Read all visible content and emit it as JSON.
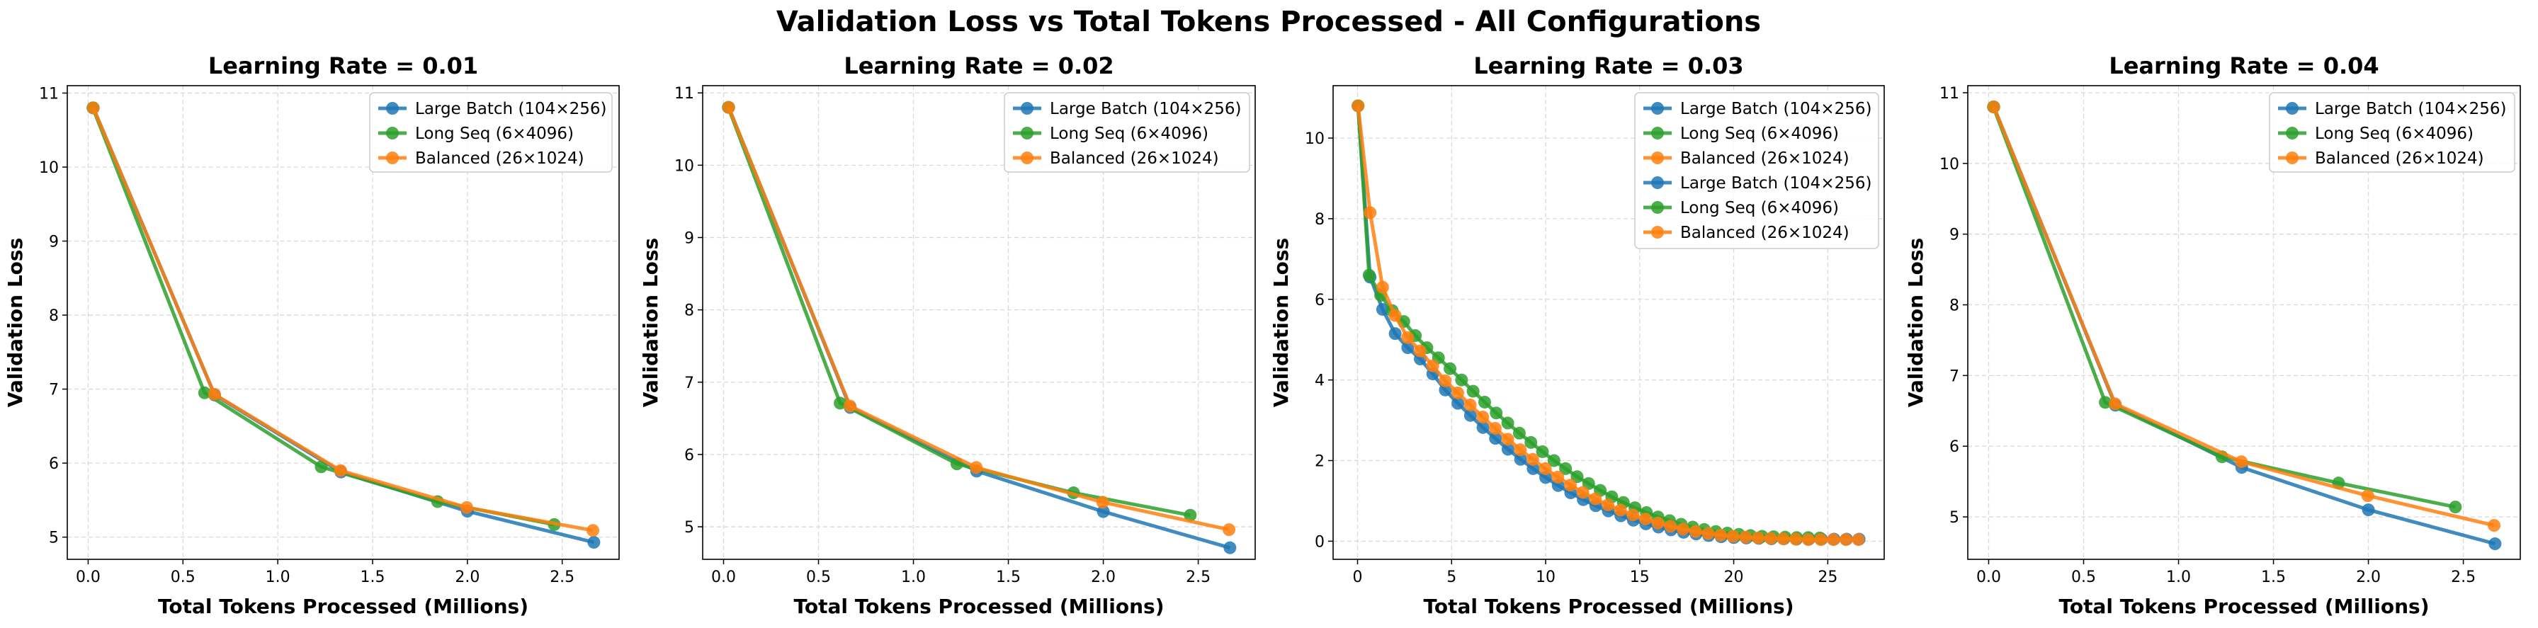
{
  "figure_title": "Validation Loss vs Total Tokens Processed - All Configurations",
  "colors": {
    "Large Batch (104×256)": "#1f77b4",
    "Long Seq (6×4096)": "#2ca02c",
    "Balanced (26×1024)": "#ff7f0e"
  },
  "chart_data": [
    {
      "type": "line",
      "title": "Learning Rate = 0.01",
      "xlabel": "Total Tokens Processed (Millions)",
      "ylabel": "Validation Loss",
      "xlim": [
        -0.11,
        2.8
      ],
      "ylim": [
        4.7,
        11.1
      ],
      "xticks": [
        0.0,
        0.5,
        1.0,
        1.5,
        2.0,
        2.5
      ],
      "xtick_labels": [
        "0.0",
        "0.5",
        "1.0",
        "1.5",
        "2.0",
        "2.5"
      ],
      "yticks": [
        5,
        6,
        7,
        8,
        9,
        10,
        11
      ],
      "ytick_labels": [
        "5",
        "6",
        "7",
        "8",
        "9",
        "10",
        "11"
      ],
      "grid": true,
      "legend": "top-right",
      "series": [
        {
          "name": "Large Batch (104×256)",
          "x": [
            0.027,
            0.667,
            1.333,
            2.0,
            2.667
          ],
          "y": [
            10.8,
            6.92,
            5.88,
            5.35,
            4.93
          ]
        },
        {
          "name": "Long Seq (6×4096)",
          "x": [
            0.025,
            0.614,
            1.229,
            1.843,
            2.458
          ],
          "y": [
            10.8,
            6.95,
            5.95,
            5.48,
            5.17
          ]
        },
        {
          "name": "Balanced (26×1024)",
          "x": [
            0.027,
            0.666,
            1.331,
            1.997,
            2.662
          ],
          "y": [
            10.8,
            6.93,
            5.9,
            5.4,
            5.09
          ]
        }
      ]
    },
    {
      "type": "line",
      "title": "Learning Rate = 0.02",
      "xlabel": "Total Tokens Processed (Millions)",
      "ylabel": "Validation Loss",
      "xlim": [
        -0.11,
        2.8
      ],
      "ylim": [
        4.55,
        11.1
      ],
      "xticks": [
        0.0,
        0.5,
        1.0,
        1.5,
        2.0,
        2.5
      ],
      "xtick_labels": [
        "0.0",
        "0.5",
        "1.0",
        "1.5",
        "2.0",
        "2.5"
      ],
      "yticks": [
        5,
        6,
        7,
        8,
        9,
        10,
        11
      ],
      "ytick_labels": [
        "5",
        "6",
        "7",
        "8",
        "9",
        "10",
        "11"
      ],
      "grid": true,
      "legend": "top-right",
      "series": [
        {
          "name": "Large Batch (104×256)",
          "x": [
            0.027,
            0.667,
            1.333,
            2.0,
            2.667
          ],
          "y": [
            10.8,
            6.65,
            5.77,
            5.21,
            4.71
          ]
        },
        {
          "name": "Long Seq (6×4096)",
          "x": [
            0.025,
            0.614,
            1.229,
            1.843,
            2.458
          ],
          "y": [
            10.8,
            6.71,
            5.87,
            5.47,
            5.16
          ]
        },
        {
          "name": "Balanced (26×1024)",
          "x": [
            0.027,
            0.666,
            1.331,
            1.997,
            2.662
          ],
          "y": [
            10.8,
            6.67,
            5.82,
            5.34,
            4.96
          ]
        }
      ]
    },
    {
      "type": "line",
      "title": "Learning Rate = 0.03",
      "xlabel": "Total Tokens Processed (Millions)",
      "ylabel": "Validation Loss",
      "xlim": [
        -1.3,
        28.0
      ],
      "ylim": [
        -0.45,
        11.3
      ],
      "xticks": [
        0,
        5,
        10,
        15,
        20,
        25
      ],
      "xtick_labels": [
        "0",
        "5",
        "10",
        "15",
        "20",
        "25"
      ],
      "yticks": [
        0,
        2,
        4,
        6,
        8,
        10
      ],
      "ytick_labels": [
        "0",
        "2",
        "4",
        "6",
        "8",
        "10"
      ],
      "grid": true,
      "legend": "top-right",
      "series": [
        {
          "name": "Large Batch (104×256)",
          "x": [
            0.027,
            0.667,
            1.333,
            2.0,
            2.667,
            3.333,
            4.0,
            4.667,
            5.333,
            6.0,
            6.667,
            7.333,
            8.0,
            8.667,
            9.333,
            10.0,
            10.667,
            11.333,
            12.0,
            12.667,
            13.333,
            14.0,
            14.667,
            15.333,
            16.0,
            16.667,
            17.333,
            18.0,
            18.667,
            19.333,
            20.0,
            20.667,
            21.333,
            22.0,
            22.667,
            23.333,
            24.0,
            24.667,
            25.333,
            26.0,
            26.667
          ],
          "y": [
            10.8,
            6.55,
            5.75,
            5.15,
            4.8,
            4.52,
            4.15,
            3.75,
            3.42,
            3.12,
            2.82,
            2.55,
            2.28,
            2.03,
            1.8,
            1.58,
            1.38,
            1.2,
            1.03,
            0.88,
            0.75,
            0.63,
            0.52,
            0.43,
            0.35,
            0.28,
            0.22,
            0.18,
            0.14,
            0.11,
            0.09,
            0.08,
            0.07,
            0.06,
            0.06,
            0.05,
            0.05,
            0.05,
            0.05,
            0.05,
            0.05
          ]
        },
        {
          "name": "Long Seq (6×4096)",
          "x": [
            0.025,
            0.614,
            1.229,
            1.843,
            2.458,
            3.072,
            3.686,
            4.301,
            4.915,
            5.53,
            6.144,
            6.758,
            7.373,
            7.987,
            8.602,
            9.216,
            9.83,
            10.445,
            11.059,
            11.674,
            12.288,
            12.902,
            13.517,
            14.131,
            14.746,
            15.36,
            15.974,
            16.589,
            17.203,
            17.818,
            18.432,
            19.046,
            19.661,
            20.275,
            20.89,
            21.504,
            22.118,
            22.733,
            23.347,
            23.962,
            24.576
          ],
          "y": [
            10.8,
            6.6,
            6.1,
            5.72,
            5.45,
            5.1,
            4.8,
            4.55,
            4.28,
            4.0,
            3.72,
            3.45,
            3.18,
            2.93,
            2.68,
            2.45,
            2.22,
            2.0,
            1.8,
            1.6,
            1.43,
            1.26,
            1.1,
            0.96,
            0.83,
            0.71,
            0.6,
            0.51,
            0.42,
            0.35,
            0.29,
            0.24,
            0.2,
            0.17,
            0.14,
            0.12,
            0.11,
            0.1,
            0.09,
            0.09,
            0.08
          ]
        },
        {
          "name": "Balanced (26×1024)",
          "x": [
            0.027,
            0.666,
            1.331,
            1.997,
            2.662,
            3.328,
            3.994,
            4.659,
            5.325,
            5.99,
            6.656,
            7.322,
            7.987,
            8.653,
            9.318,
            9.984,
            10.65,
            11.315,
            11.981,
            12.646,
            13.312,
            13.978,
            14.643,
            15.309,
            15.974,
            16.64,
            17.306,
            17.971,
            18.637,
            19.302,
            19.968,
            20.634,
            21.299,
            21.965,
            22.63,
            23.296,
            23.962,
            24.627,
            25.293,
            25.958,
            26.624
          ],
          "y": [
            10.8,
            8.15,
            6.3,
            5.6,
            5.05,
            4.72,
            4.35,
            3.98,
            3.68,
            3.38,
            3.08,
            2.8,
            2.53,
            2.27,
            2.03,
            1.8,
            1.59,
            1.39,
            1.21,
            1.05,
            0.9,
            0.77,
            0.65,
            0.55,
            0.45,
            0.37,
            0.3,
            0.24,
            0.19,
            0.15,
            0.12,
            0.1,
            0.08,
            0.07,
            0.06,
            0.05,
            0.04,
            0.04,
            0.04,
            0.04,
            0.04
          ]
        }
      ]
    },
    {
      "type": "line",
      "title": "Learning Rate = 0.04",
      "xlabel": "Total Tokens Processed (Millions)",
      "ylabel": "Validation Loss",
      "xlim": [
        -0.11,
        2.8
      ],
      "ylim": [
        4.4,
        11.1
      ],
      "xticks": [
        0.0,
        0.5,
        1.0,
        1.5,
        2.0,
        2.5
      ],
      "xtick_labels": [
        "0.0",
        "0.5",
        "1.0",
        "1.5",
        "2.0",
        "2.5"
      ],
      "yticks": [
        5,
        6,
        7,
        8,
        9,
        10,
        11
      ],
      "ytick_labels": [
        "5",
        "6",
        "7",
        "8",
        "9",
        "10",
        "11"
      ],
      "grid": true,
      "legend": "top-right",
      "series": [
        {
          "name": "Large Batch (104×256)",
          "x": [
            0.027,
            0.667,
            1.333,
            2.0,
            2.667
          ],
          "y": [
            10.8,
            6.58,
            5.7,
            5.1,
            4.62
          ]
        },
        {
          "name": "Long Seq (6×4096)",
          "x": [
            0.025,
            0.614,
            1.229,
            1.843,
            2.458
          ],
          "y": [
            10.8,
            6.62,
            5.85,
            5.48,
            5.14
          ]
        },
        {
          "name": "Balanced (26×1024)",
          "x": [
            0.027,
            0.666,
            1.331,
            1.997,
            2.662
          ],
          "y": [
            10.8,
            6.6,
            5.78,
            5.3,
            4.88
          ]
        }
      ]
    }
  ]
}
